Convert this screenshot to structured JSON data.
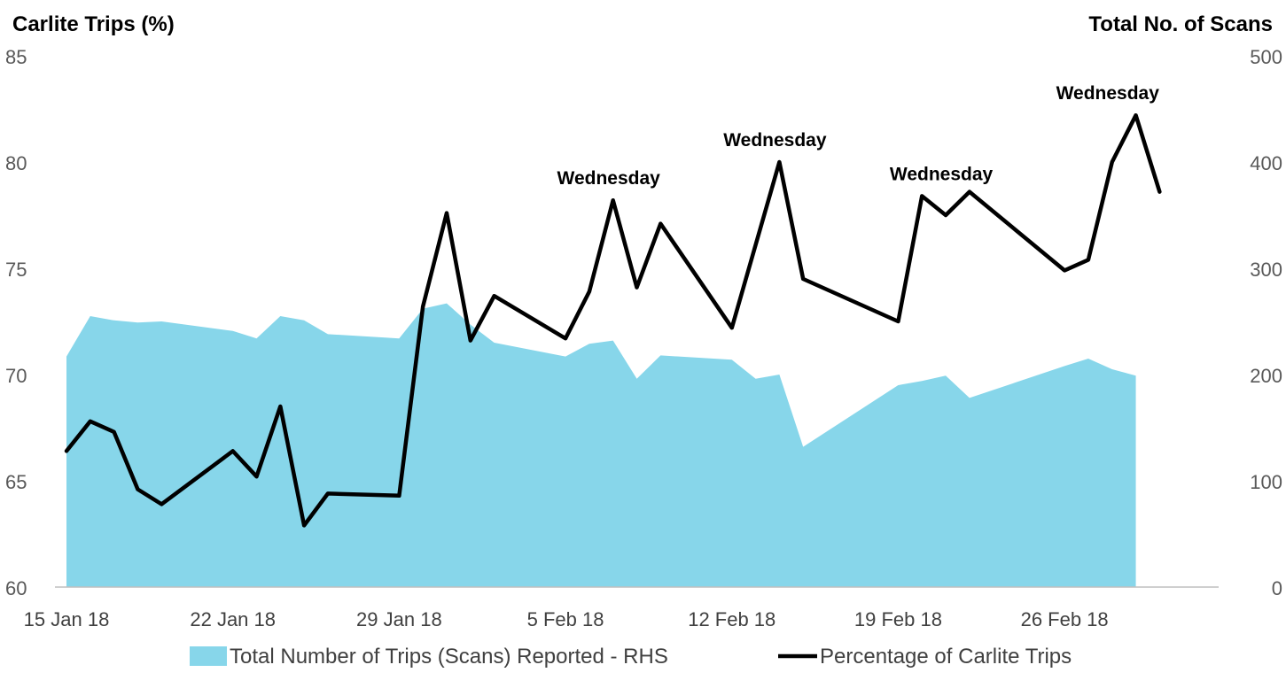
{
  "chart_data": {
    "type": "line",
    "title": "",
    "left_axis_title": "Carlite Trips (%)",
    "right_axis_title": "Total No. of Scans",
    "y_left_lim": [
      60,
      85
    ],
    "y_left_ticks": [
      60,
      65,
      70,
      75,
      80,
      85
    ],
    "y_right_lim": [
      0,
      500
    ],
    "y_right_ticks": [
      0,
      100,
      200,
      300,
      400,
      500
    ],
    "x_range": [
      "2018-01-15",
      "2018-03-04"
    ],
    "x_tick_labels": [
      {
        "date": "2018-01-15",
        "label": "15 Jan 18"
      },
      {
        "date": "2018-01-22",
        "label": "22 Jan 18"
      },
      {
        "date": "2018-01-29",
        "label": "29 Jan 18"
      },
      {
        "date": "2018-02-05",
        "label": "5 Feb 18"
      },
      {
        "date": "2018-02-12",
        "label": "12 Feb 18"
      },
      {
        "date": "2018-02-19",
        "label": "19 Feb 18"
      },
      {
        "date": "2018-02-26",
        "label": "26 Feb 18"
      }
    ],
    "grid": false,
    "legend_position": "bottom",
    "series": [
      {
        "name": "Total Number of Trips (Scans) Reported - RHS",
        "type": "area",
        "axis": "right",
        "color": "#87D6EA",
        "points": [
          {
            "x": "2018-01-15",
            "y": 217
          },
          {
            "x": "2018-01-16",
            "y": 255
          },
          {
            "x": "2018-01-17",
            "y": 251
          },
          {
            "x": "2018-01-18",
            "y": 249
          },
          {
            "x": "2018-01-19",
            "y": 250
          },
          {
            "x": "2018-01-22",
            "y": 241
          },
          {
            "x": "2018-01-23",
            "y": 234
          },
          {
            "x": "2018-01-24",
            "y": 255
          },
          {
            "x": "2018-01-25",
            "y": 251
          },
          {
            "x": "2018-01-26",
            "y": 238
          },
          {
            "x": "2018-01-29",
            "y": 234
          },
          {
            "x": "2018-01-30",
            "y": 262
          },
          {
            "x": "2018-01-31",
            "y": 267
          },
          {
            "x": "2018-02-01",
            "y": 247
          },
          {
            "x": "2018-02-02",
            "y": 230
          },
          {
            "x": "2018-02-05",
            "y": 217
          },
          {
            "x": "2018-02-06",
            "y": 229
          },
          {
            "x": "2018-02-07",
            "y": 232
          },
          {
            "x": "2018-02-08",
            "y": 196
          },
          {
            "x": "2018-02-09",
            "y": 218
          },
          {
            "x": "2018-02-12",
            "y": 214
          },
          {
            "x": "2018-02-13",
            "y": 196
          },
          {
            "x": "2018-02-14",
            "y": 200
          },
          {
            "x": "2018-02-15",
            "y": 132
          },
          {
            "x": "2018-02-19",
            "y": 190
          },
          {
            "x": "2018-02-20",
            "y": 194
          },
          {
            "x": "2018-02-21",
            "y": 199
          },
          {
            "x": "2018-02-22",
            "y": 178
          },
          {
            "x": "2018-02-26",
            "y": 208
          },
          {
            "x": "2018-02-27",
            "y": 215
          },
          {
            "x": "2018-02-28",
            "y": 205
          },
          {
            "x": "2018-03-01",
            "y": 199
          }
        ]
      },
      {
        "name": "Percentage of Carlite Trips",
        "type": "line",
        "axis": "left",
        "color": "#000000",
        "points": [
          {
            "x": "2018-01-15",
            "y": 66.4
          },
          {
            "x": "2018-01-16",
            "y": 67.8
          },
          {
            "x": "2018-01-17",
            "y": 67.3
          },
          {
            "x": "2018-01-18",
            "y": 64.6
          },
          {
            "x": "2018-01-19",
            "y": 63.9
          },
          {
            "x": "2018-01-22",
            "y": 66.4
          },
          {
            "x": "2018-01-23",
            "y": 65.2
          },
          {
            "x": "2018-01-24",
            "y": 68.5
          },
          {
            "x": "2018-01-25",
            "y": 62.9
          },
          {
            "x": "2018-01-26",
            "y": 64.4
          },
          {
            "x": "2018-01-29",
            "y": 64.3
          },
          {
            "x": "2018-01-30",
            "y": 73.2
          },
          {
            "x": "2018-01-31",
            "y": 77.6
          },
          {
            "x": "2018-02-01",
            "y": 71.6
          },
          {
            "x": "2018-02-02",
            "y": 73.7
          },
          {
            "x": "2018-02-05",
            "y": 71.7
          },
          {
            "x": "2018-02-06",
            "y": 73.9
          },
          {
            "x": "2018-02-07",
            "y": 78.2
          },
          {
            "x": "2018-02-08",
            "y": 74.1
          },
          {
            "x": "2018-02-09",
            "y": 77.1
          },
          {
            "x": "2018-02-12",
            "y": 72.2
          },
          {
            "x": "2018-02-13",
            "y": 76.1
          },
          {
            "x": "2018-02-14",
            "y": 80.0
          },
          {
            "x": "2018-02-15",
            "y": 74.5
          },
          {
            "x": "2018-02-19",
            "y": 72.5
          },
          {
            "x": "2018-02-20",
            "y": 78.4
          },
          {
            "x": "2018-02-21",
            "y": 77.5
          },
          {
            "x": "2018-02-22",
            "y": 78.6
          },
          {
            "x": "2018-02-26",
            "y": 74.9
          },
          {
            "x": "2018-02-27",
            "y": 75.4
          },
          {
            "x": "2018-02-28",
            "y": 80.0
          },
          {
            "x": "2018-03-01",
            "y": 82.2
          },
          {
            "x": "2018-03-02",
            "y": 78.6
          }
        ]
      }
    ],
    "annotations": [
      {
        "text": "Wednesday",
        "x": "2018-02-07",
        "y": 78.2,
        "axis": "left"
      },
      {
        "text": "Wednesday",
        "x": "2018-02-14",
        "y": 80.0,
        "axis": "left"
      },
      {
        "text": "Wednesday",
        "x": "2018-02-21",
        "y": 78.4,
        "axis": "left"
      },
      {
        "text": "Wednesday",
        "x": "2018-02-28",
        "y": 82.2,
        "axis": "left"
      }
    ]
  }
}
